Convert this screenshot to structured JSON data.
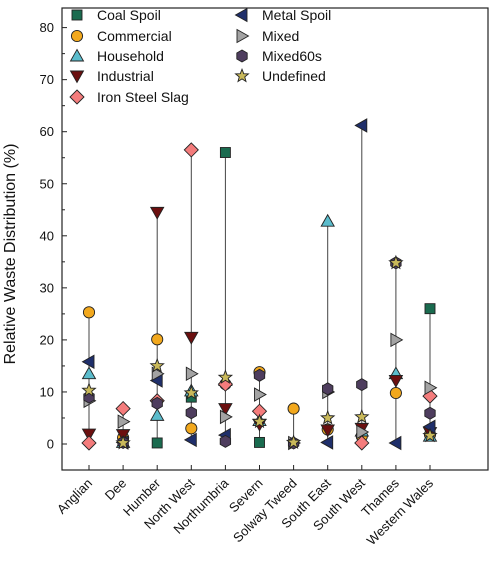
{
  "chart_data": {
    "type": "scatter",
    "title": "",
    "xlabel": "",
    "ylabel": "Relative Waste Distribution (%)",
    "ylim": [
      -5,
      86
    ],
    "yticks": [
      0,
      10,
      20,
      30,
      40,
      50,
      60,
      70,
      80
    ],
    "grid": false,
    "legend_position": "top-left",
    "categories": [
      "Anglian",
      "Dee",
      "Humber",
      "North West",
      "Northumbria",
      "Severn",
      "Solway Tweed",
      "South East",
      "South West",
      "Thames",
      "Western Wales"
    ],
    "series": [
      {
        "name": "Coal Spoil",
        "marker": "square",
        "color": "#1a6b4f",
        "values": [
          null,
          0.5,
          0.2,
          9,
          56,
          0.3,
          null,
          null,
          null,
          null,
          26
        ]
      },
      {
        "name": "Commercial",
        "marker": "circle",
        "color": "#f2a81d",
        "values": [
          25.3,
          1.2,
          20.1,
          3.0,
          11.5,
          13.8,
          6.8,
          2.8,
          1.5,
          9.8,
          1.8
        ]
      },
      {
        "name": "Household",
        "marker": "triangle-up",
        "color": "#5bbccc",
        "values": [
          13.5,
          0.3,
          5.5,
          10.2,
          12.2,
          4.5,
          null,
          42.8,
          2.5,
          13.5,
          1.5
        ]
      },
      {
        "name": "Industrial",
        "marker": "triangle-down",
        "color": "#6b0f0f",
        "values": [
          1.9,
          1.8,
          44.5,
          20.5,
          6.8,
          3.8,
          null,
          2.7,
          3.0,
          12.2,
          2.2
        ]
      },
      {
        "name": "Iron Steel Slag",
        "marker": "diamond",
        "color": "#f47c7c",
        "values": [
          0.2,
          6.8,
          8.3,
          56.5,
          11.5,
          6.3,
          null,
          null,
          0.2,
          null,
          9.2
        ]
      },
      {
        "name": "Metal Spoil",
        "marker": "triangle-left",
        "color": "#1f2f6b",
        "values": [
          15.8,
          0.3,
          12.2,
          0.8,
          1.7,
          null,
          null,
          0.3,
          61.2,
          0.2,
          3.3
        ]
      },
      {
        "name": "Mixed",
        "marker": "triangle-right",
        "color": "#a3a3a3",
        "values": [
          8.3,
          4.3,
          13.5,
          13.5,
          5.2,
          9.5,
          0.2,
          10.0,
          2.3,
          20.0,
          10.8
        ]
      },
      {
        "name": "Mixed60s",
        "marker": "hexagon",
        "color": "#4e3d5e",
        "values": [
          9.0,
          0.3,
          7.8,
          6.0,
          0.5,
          13.2,
          0.2,
          10.6,
          11.4,
          34.8,
          5.9
        ]
      },
      {
        "name": "Undefined",
        "marker": "star",
        "color": "#c9b95a",
        "values": [
          10.3,
          0.2,
          15.0,
          9.8,
          12.8,
          4.3,
          0.3,
          5.0,
          5.2,
          34.8,
          1.6
        ]
      }
    ]
  }
}
